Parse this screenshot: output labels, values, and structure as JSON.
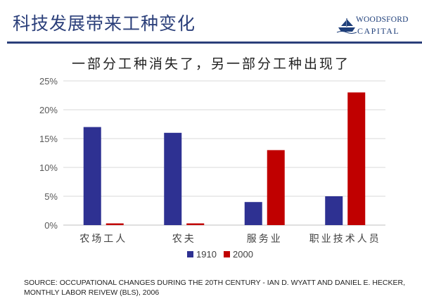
{
  "slide": {
    "title": "科技发展带来工种变化",
    "logo": {
      "line1": "WOODSFORD",
      "line2": "CAPITAL",
      "mark_icon": "ship-icon"
    },
    "accent_color": "#2b3f7a"
  },
  "chart_data": {
    "type": "bar",
    "title": "一部分工种消失了，另一部分工种出现了",
    "categories": [
      "农场工人",
      "农夫",
      "服务业",
      "职业技术人员"
    ],
    "series": [
      {
        "name": "1910",
        "color": "#2e3192",
        "values": [
          17,
          16,
          4,
          5
        ]
      },
      {
        "name": "2000",
        "color": "#c00000",
        "values": [
          0.3,
          0.3,
          13,
          23
        ]
      }
    ],
    "xlabel": "",
    "ylabel": "",
    "ylim": [
      0,
      25
    ],
    "yticks": [
      "0%",
      "5%",
      "10%",
      "15%",
      "20%",
      "25%"
    ],
    "grid": true,
    "legend_position": "bottom-center"
  },
  "footer": {
    "source": "SOURCE: OCCUPATIONAL CHANGES DURING THE 20TH CENTURY - IAN D. WYATT AND DANIEL E. HECKER, MONTHLY LABOR REIVEW (BLS), 2006"
  }
}
